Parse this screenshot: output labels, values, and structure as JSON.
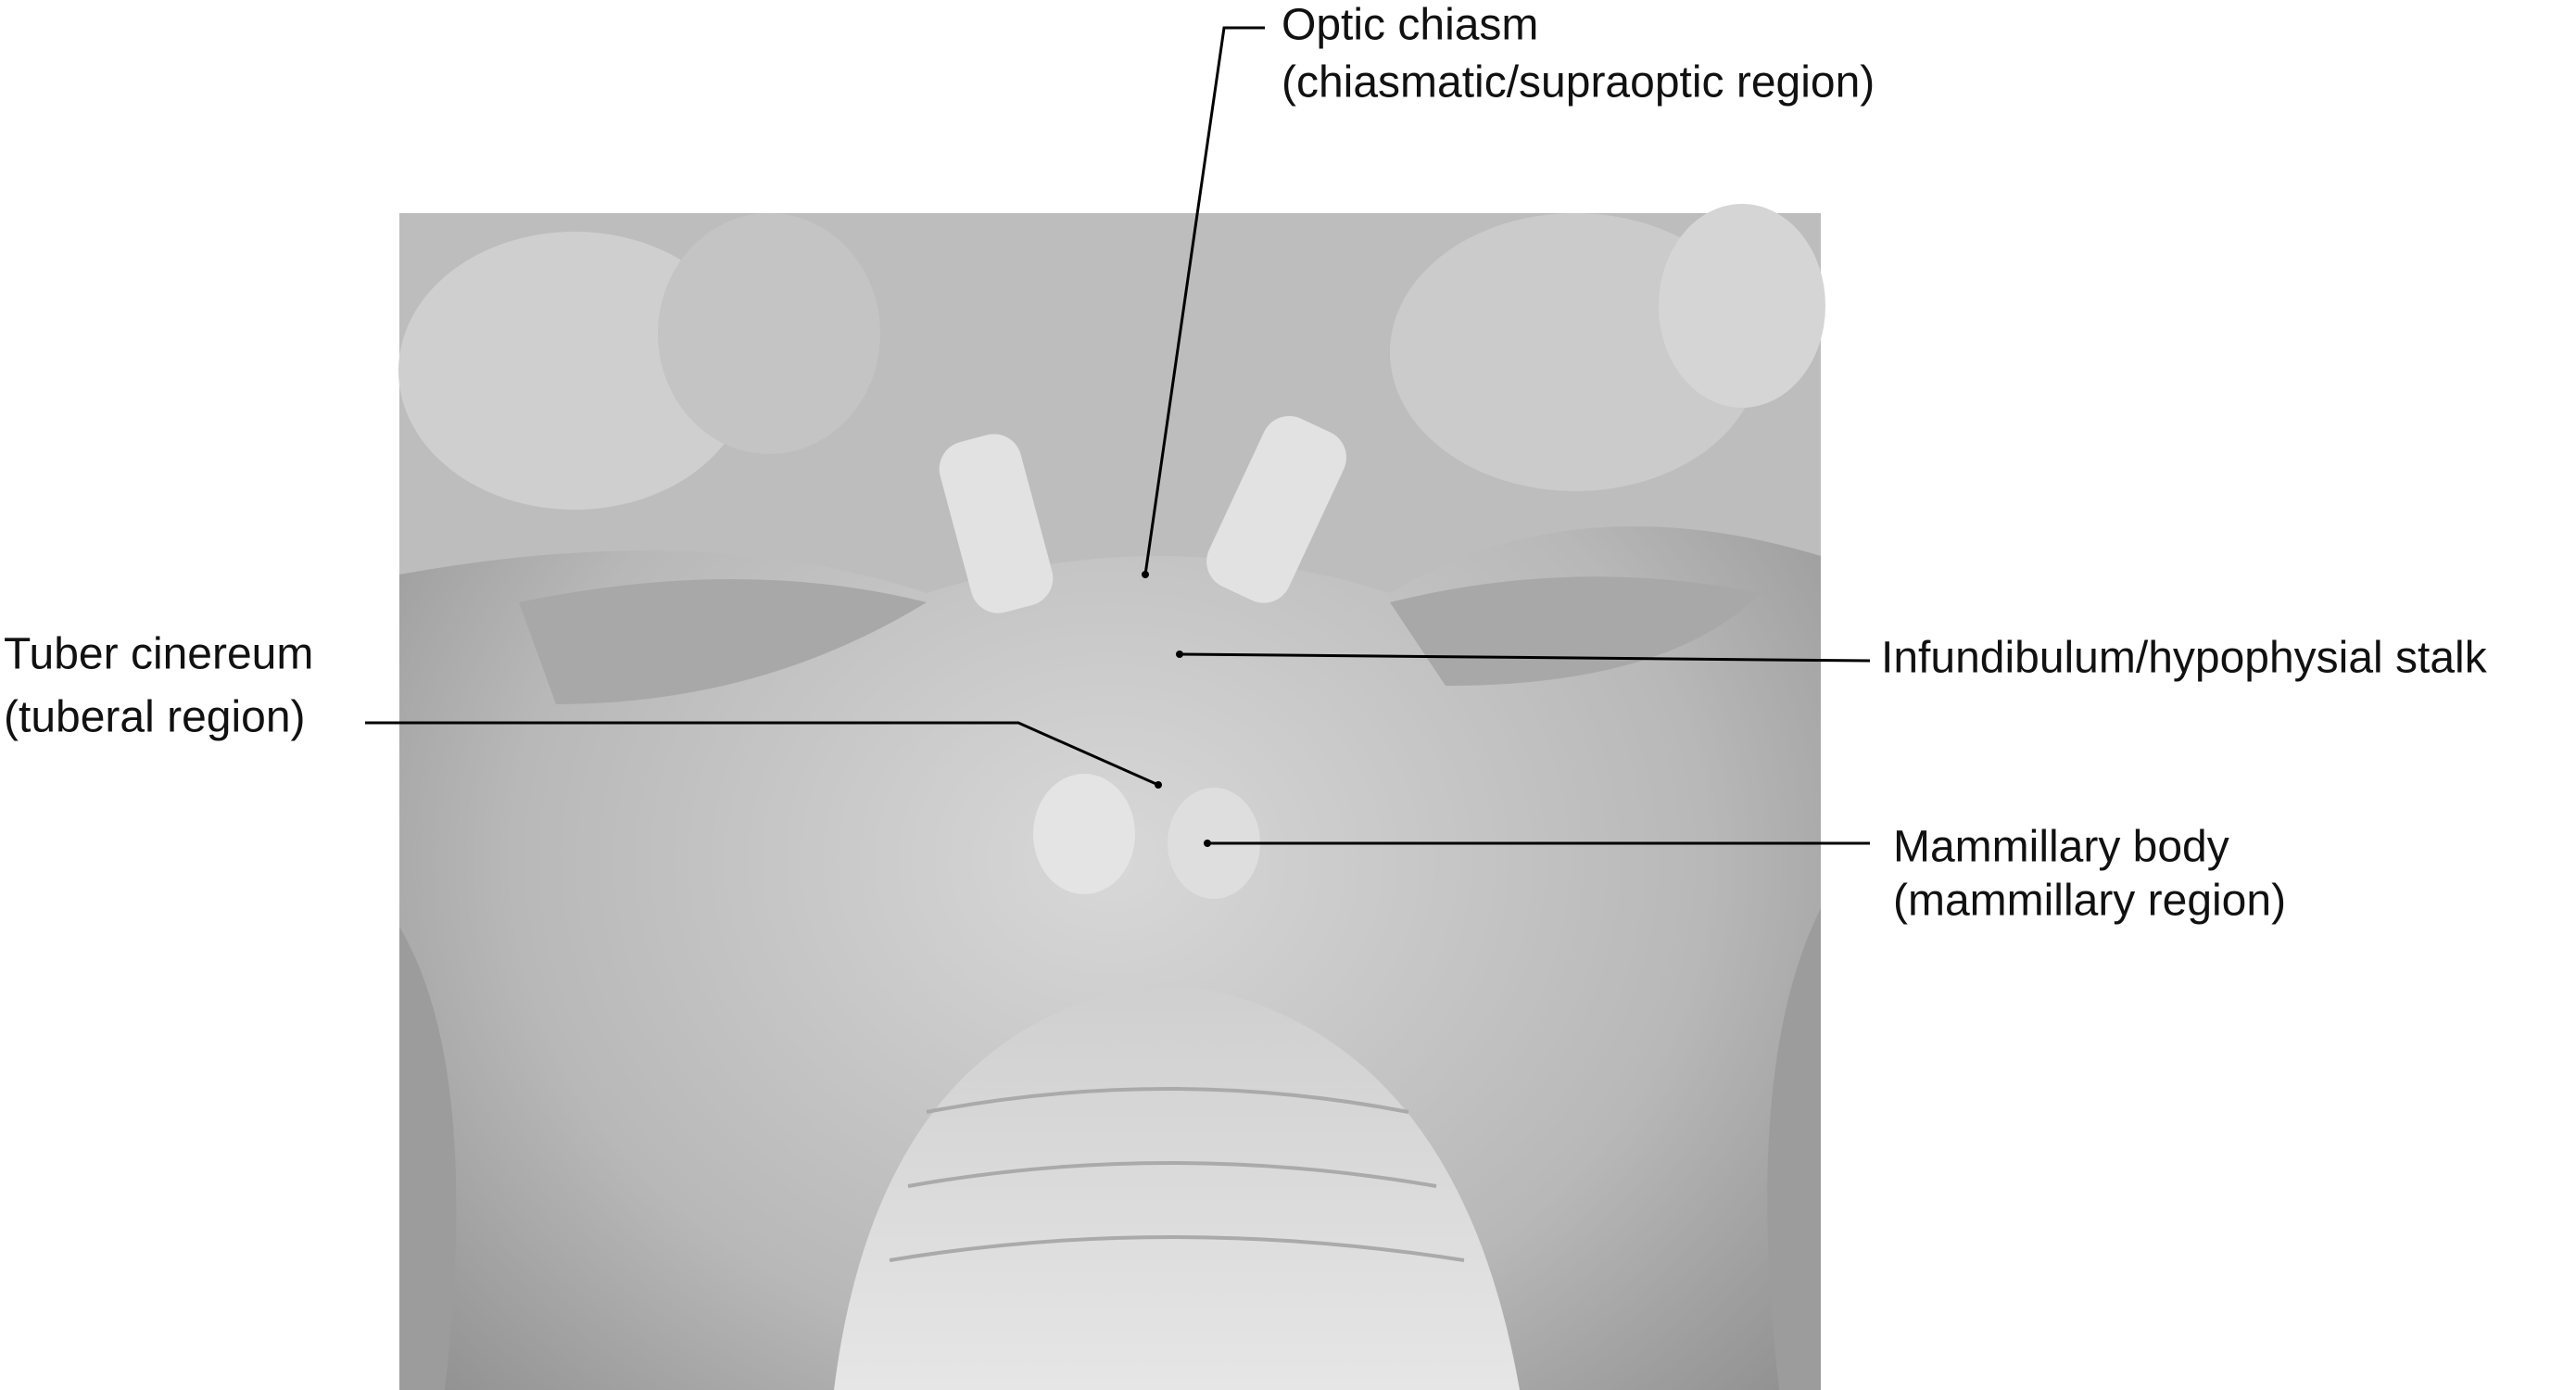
{
  "labels": [
    {
      "name": "Optic chiasm",
      "region": "(chiasmatic/supraoptic region)"
    },
    {
      "name": "Tuber cinereum",
      "region": "(tuberal region)"
    },
    {
      "name": "Infundibulum/hypophysial stalk"
    },
    {
      "name": "Mammillary body",
      "region": "(mammillary region)"
    }
  ]
}
